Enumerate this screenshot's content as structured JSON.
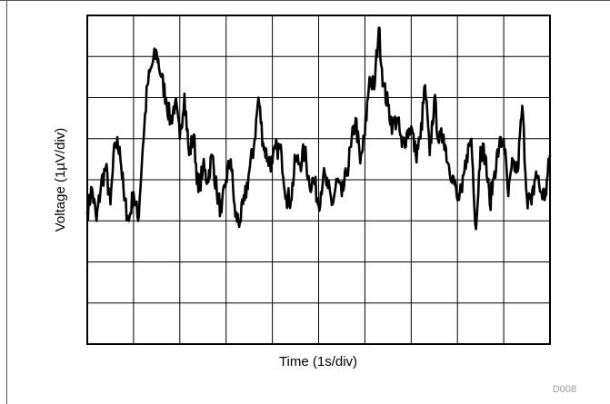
{
  "chart_data": {
    "type": "line",
    "xlabel": "Time (1s/div)",
    "ylabel": "Voltage (1µV/div)",
    "figure_id": "D008",
    "grid": true,
    "xlim": [
      0,
      10
    ],
    "ylim": [
      -4,
      4
    ],
    "x_divisions": 10,
    "y_divisions": 8,
    "series": [
      {
        "x": [
          0,
          0.1,
          0.2,
          0.3,
          0.4,
          0.5,
          0.6,
          0.7,
          0.8,
          0.9,
          1.0,
          1.1,
          1.2,
          1.3,
          1.4,
          1.5,
          1.6,
          1.7,
          1.8,
          1.9,
          2.0,
          2.1,
          2.2,
          2.3,
          2.4,
          2.5,
          2.6,
          2.7,
          2.8,
          2.9,
          3.0,
          3.1,
          3.2,
          3.3,
          3.4,
          3.5,
          3.6,
          3.7,
          3.8,
          3.9,
          4.0,
          4.1,
          4.2,
          4.3,
          4.4,
          4.5,
          4.6,
          4.7,
          4.8,
          4.9,
          5.0,
          5.1,
          5.2,
          5.3,
          5.4,
          5.5,
          5.6,
          5.7,
          5.8,
          5.9,
          6.0,
          6.1,
          6.2,
          6.3,
          6.4,
          6.5,
          6.6,
          6.7,
          6.8,
          6.9,
          7.0,
          7.1,
          7.2,
          7.3,
          7.4,
          7.5,
          7.6,
          7.7,
          7.8,
          7.9,
          8.0,
          8.1,
          8.2,
          8.3,
          8.4,
          8.5,
          8.6,
          8.7,
          8.8,
          8.9,
          9.0,
          9.1,
          9.2,
          9.3,
          9.4,
          9.5,
          9.6,
          9.7,
          9.8,
          9.9,
          10.0
        ],
        "y": [
          -0.8,
          -0.2,
          -1.0,
          -0.1,
          0.3,
          -0.6,
          0.9,
          0.8,
          -0.5,
          -1.0,
          -0.3,
          -1.0,
          0.8,
          2.3,
          2.8,
          3.1,
          2.5,
          2.0,
          1.4,
          1.9,
          1.0,
          2.1,
          0.6,
          1.1,
          -0.3,
          0.3,
          0.0,
          0.6,
          -0.3,
          -0.8,
          0.0,
          0.5,
          -0.9,
          -1.0,
          -0.5,
          0.2,
          0.8,
          2.0,
          0.9,
          0.5,
          0.4,
          0.8,
          0.6,
          -0.4,
          -0.5,
          0.5,
          0.4,
          0.7,
          -0.1,
          0.0,
          -0.6,
          0.1,
          -0.2,
          -0.6,
          0.0,
          -0.4,
          0.1,
          0.8,
          1.5,
          0.4,
          1.1,
          2.5,
          2.2,
          3.7,
          2.3,
          1.8,
          1.3,
          1.5,
          0.8,
          1.1,
          1.3,
          0.6,
          1.0,
          2.3,
          0.6,
          2.0,
          0.9,
          1.1,
          0.4,
          0.1,
          -0.5,
          -0.3,
          0.6,
          1.0,
          -1.2,
          0.8,
          0.6,
          -0.6,
          0.2,
          0.8,
          1.0,
          -0.4,
          0.4,
          0.2,
          1.8,
          -0.4,
          -0.6,
          0.2,
          -0.3,
          -0.4,
          0.6
        ]
      }
    ]
  }
}
